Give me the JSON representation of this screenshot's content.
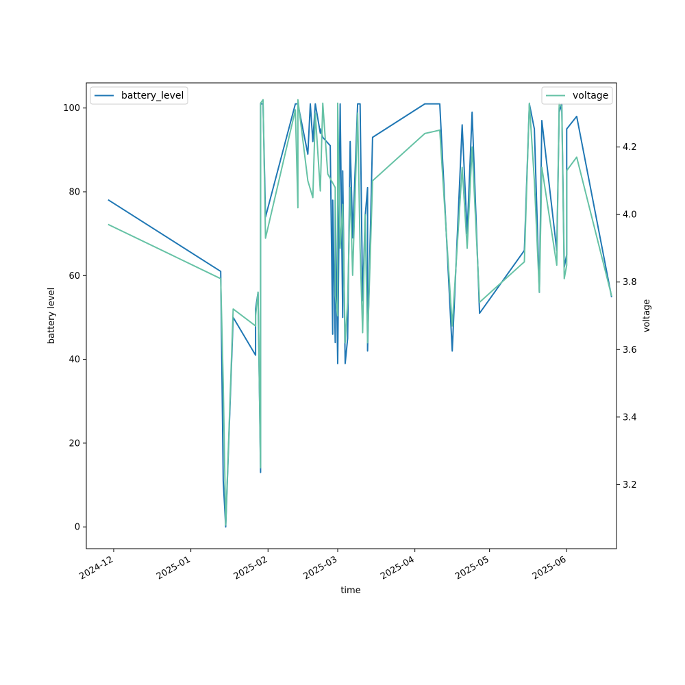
{
  "chart_data": {
    "type": "line",
    "xlabel": "time",
    "ylabel_left": "battery level",
    "ylabel_right": "voltage",
    "x_ticks": [
      "2024-12",
      "2025-01",
      "2025-02",
      "2025-03",
      "2025-04",
      "2025-05",
      "2025-06"
    ],
    "y_left_ticks": [
      0,
      20,
      40,
      60,
      80,
      100
    ],
    "y_right_ticks": [
      3.2,
      3.4,
      3.6,
      3.8,
      4.0,
      4.2
    ],
    "ylim_left": [
      -5.2,
      106
    ],
    "ylim_right": [
      3.01,
      4.39
    ],
    "xlim": [
      "2024-11-20",
      "2025-06-21"
    ],
    "legend_left": {
      "label": "battery_level",
      "placement": "upper left"
    },
    "legend_right": {
      "label": "voltage",
      "placement": "upper right"
    },
    "series": [
      {
        "name": "battery_level",
        "axis": "left",
        "color": "#1f77b4",
        "points": [
          [
            "2024-11-29",
            78
          ],
          [
            "2025-01-13",
            61
          ],
          [
            "2025-01-14",
            11
          ],
          [
            "2025-01-15",
            0
          ],
          [
            "2025-01-18",
            50
          ],
          [
            "2025-01-27",
            41
          ],
          [
            "2025-01-27",
            52
          ],
          [
            "2025-01-28",
            56
          ],
          [
            "2025-01-29",
            13
          ],
          [
            "2025-01-29",
            22
          ],
          [
            "2025-01-29",
            101
          ],
          [
            "2025-01-30",
            101
          ],
          [
            "2025-01-31",
            74
          ],
          [
            "2025-02-12",
            101
          ],
          [
            "2025-02-13",
            101
          ],
          [
            "2025-02-17",
            89
          ],
          [
            "2025-02-18",
            101
          ],
          [
            "2025-02-19",
            92
          ],
          [
            "2025-02-20",
            101
          ],
          [
            "2025-02-22",
            94
          ],
          [
            "2025-02-22",
            95
          ],
          [
            "2025-02-23",
            93
          ],
          [
            "2025-02-26",
            91
          ],
          [
            "2025-02-27",
            46
          ],
          [
            "2025-02-27",
            78
          ],
          [
            "2025-02-28",
            44
          ],
          [
            "2025-02-28",
            78
          ],
          [
            "2025-03-01",
            39
          ],
          [
            "2025-03-02",
            101
          ],
          [
            "2025-03-03",
            50
          ],
          [
            "2025-03-03",
            85
          ],
          [
            "2025-03-04",
            39
          ],
          [
            "2025-03-05",
            45
          ],
          [
            "2025-03-06",
            92
          ],
          [
            "2025-03-07",
            70
          ],
          [
            "2025-03-07",
            69
          ],
          [
            "2025-03-09",
            101
          ],
          [
            "2025-03-10",
            101
          ],
          [
            "2025-03-11",
            54
          ],
          [
            "2025-03-12",
            74
          ],
          [
            "2025-03-13",
            81
          ],
          [
            "2025-03-13",
            42
          ],
          [
            "2025-03-15",
            93
          ],
          [
            "2025-04-05",
            101
          ],
          [
            "2025-04-11",
            101
          ],
          [
            "2025-04-16",
            42
          ],
          [
            "2025-04-20",
            96
          ],
          [
            "2025-04-22",
            70
          ],
          [
            "2025-04-24",
            99
          ],
          [
            "2025-04-27",
            51
          ],
          [
            "2025-05-15",
            66
          ],
          [
            "2025-05-17",
            101
          ],
          [
            "2025-05-19",
            95
          ],
          [
            "2025-05-21",
            56
          ],
          [
            "2025-05-22",
            97
          ],
          [
            "2025-05-28",
            66
          ],
          [
            "2025-05-29",
            100
          ],
          [
            "2025-05-29",
            99
          ],
          [
            "2025-05-30",
            101
          ],
          [
            "2025-05-31",
            62
          ],
          [
            "2025-06-01",
            65
          ],
          [
            "2025-06-01",
            95
          ],
          [
            "2025-06-05",
            98
          ],
          [
            "2025-06-19",
            55
          ]
        ]
      },
      {
        "name": "voltage",
        "axis": "right",
        "color": "#66c2a5",
        "points": [
          [
            "2024-11-29",
            3.97
          ],
          [
            "2025-01-13",
            3.81
          ],
          [
            "2025-01-14",
            3.5
          ],
          [
            "2025-01-15",
            3.08
          ],
          [
            "2025-01-18",
            3.72
          ],
          [
            "2025-01-27",
            3.67
          ],
          [
            "2025-01-27",
            3.7
          ],
          [
            "2025-01-28",
            3.77
          ],
          [
            "2025-01-29",
            3.25
          ],
          [
            "2025-01-29",
            4.33
          ],
          [
            "2025-01-30",
            4.34
          ],
          [
            "2025-01-31",
            3.93
          ],
          [
            "2025-02-12",
            4.31
          ],
          [
            "2025-02-13",
            4.02
          ],
          [
            "2025-02-13",
            4.34
          ],
          [
            "2025-02-17",
            4.1
          ],
          [
            "2025-02-19",
            4.05
          ],
          [
            "2025-02-20",
            4.3
          ],
          [
            "2025-02-22",
            4.07
          ],
          [
            "2025-02-23",
            4.33
          ],
          [
            "2025-02-25",
            4.12
          ],
          [
            "2025-02-28",
            4.08
          ],
          [
            "2025-02-28",
            3.76
          ],
          [
            "2025-03-01",
            3.7
          ],
          [
            "2025-03-01",
            4.33
          ],
          [
            "2025-03-02",
            3.9
          ],
          [
            "2025-03-03",
            4.03
          ],
          [
            "2025-03-04",
            3.62
          ],
          [
            "2025-03-05",
            3.74
          ],
          [
            "2025-03-06",
            4.08
          ],
          [
            "2025-03-07",
            3.82
          ],
          [
            "2025-03-09",
            4.3
          ],
          [
            "2025-03-10",
            3.9
          ],
          [
            "2025-03-11",
            3.65
          ],
          [
            "2025-03-12",
            4.0
          ],
          [
            "2025-03-13",
            3.62
          ],
          [
            "2025-03-15",
            4.1
          ],
          [
            "2025-04-05",
            4.24
          ],
          [
            "2025-04-11",
            4.25
          ],
          [
            "2025-04-16",
            3.67
          ],
          [
            "2025-04-20",
            4.14
          ],
          [
            "2025-04-22",
            3.9
          ],
          [
            "2025-04-24",
            4.2
          ],
          [
            "2025-04-27",
            3.74
          ],
          [
            "2025-05-15",
            3.86
          ],
          [
            "2025-05-17",
            4.33
          ],
          [
            "2025-05-19",
            4.1
          ],
          [
            "2025-05-21",
            3.77
          ],
          [
            "2025-05-22",
            4.14
          ],
          [
            "2025-05-28",
            3.85
          ],
          [
            "2025-05-29",
            4.33
          ],
          [
            "2025-05-30",
            4.32
          ],
          [
            "2025-05-31",
            3.81
          ],
          [
            "2025-06-01",
            3.85
          ],
          [
            "2025-06-01",
            4.13
          ],
          [
            "2025-06-05",
            4.17
          ],
          [
            "2025-06-19",
            3.76
          ]
        ]
      }
    ]
  }
}
